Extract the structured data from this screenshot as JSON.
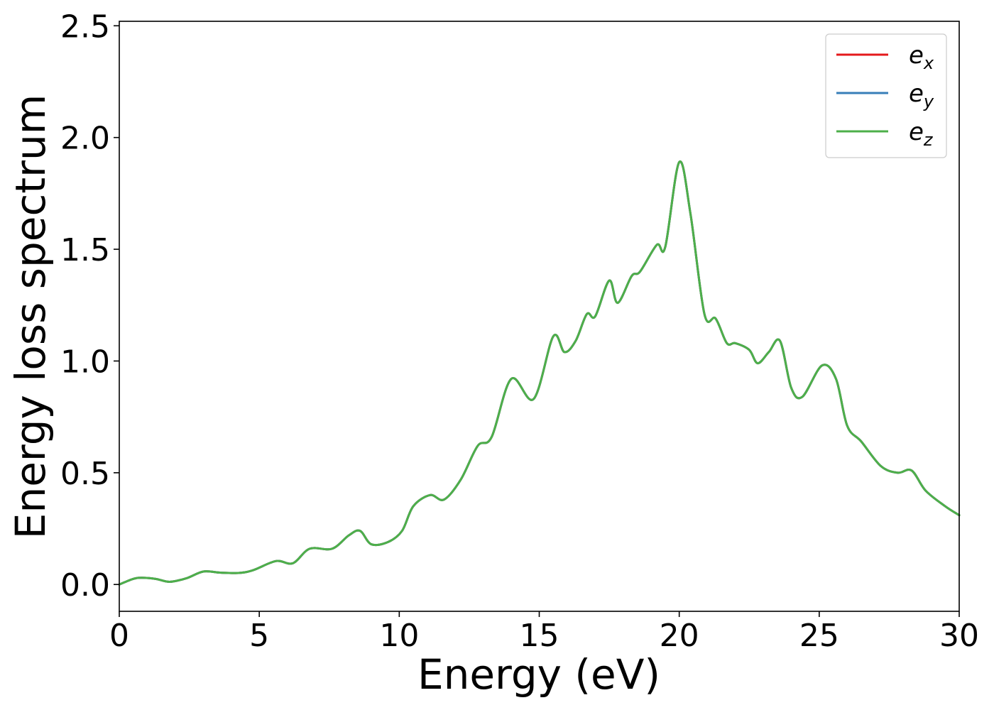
{
  "chart_data": {
    "type": "line",
    "title": "",
    "xlabel": "Energy (eV)",
    "ylabel": "Energy loss spectrum",
    "xlim": [
      0,
      30
    ],
    "ylim": [
      -0.12,
      2.52
    ],
    "xticks": [
      "0",
      "5",
      "10",
      "15",
      "20",
      "25",
      "30"
    ],
    "yticks": [
      "0.0",
      "0.5",
      "1.0",
      "1.5",
      "2.0",
      "2.5"
    ],
    "grid": false,
    "legend_position": "top-right",
    "legend": [
      {
        "base": "e",
        "sub": "x",
        "color": "#e41a1c"
      },
      {
        "base": "e",
        "sub": "y",
        "color": "#377eb8"
      },
      {
        "base": "e",
        "sub": "z",
        "color": "#4daf4a"
      }
    ],
    "x": [
      0,
      0.5,
      0.8,
      1.3,
      1.8,
      2.4,
      3.0,
      3.6,
      4.3,
      4.8,
      5.6,
      6.2,
      6.8,
      7.6,
      8.2,
      8.6,
      9.0,
      9.6,
      10.1,
      10.5,
      11.1,
      11.6,
      12.2,
      12.8,
      13.3,
      14.0,
      14.8,
      15.5,
      15.9,
      16.3,
      16.7,
      17.0,
      17.5,
      17.8,
      18.3,
      18.6,
      19.2,
      19.5,
      20.0,
      20.4,
      20.9,
      21.3,
      21.7,
      22.0,
      22.5,
      22.8,
      23.2,
      23.6,
      24.0,
      24.4,
      25.1,
      25.6,
      26.0,
      26.5,
      27.2,
      27.8,
      28.3,
      28.8,
      29.5,
      30.0
    ],
    "series": [
      {
        "name": "e_x",
        "color": "#e41a1c",
        "y": [
          0.0,
          0.025,
          0.03,
          0.025,
          0.012,
          0.028,
          0.058,
          0.053,
          0.052,
          0.065,
          0.105,
          0.095,
          0.16,
          0.16,
          0.22,
          0.24,
          0.18,
          0.19,
          0.24,
          0.35,
          0.4,
          0.38,
          0.47,
          0.62,
          0.66,
          0.92,
          0.83,
          1.11,
          1.04,
          1.09,
          1.21,
          1.2,
          1.36,
          1.26,
          1.38,
          1.4,
          1.52,
          1.51,
          1.89,
          1.66,
          1.21,
          1.19,
          1.08,
          1.08,
          1.05,
          0.99,
          1.04,
          1.09,
          0.88,
          0.84,
          0.98,
          0.92,
          0.71,
          0.64,
          0.53,
          0.5,
          0.51,
          0.42,
          0.35,
          0.31
        ]
      },
      {
        "name": "e_y",
        "color": "#377eb8",
        "y": [
          0.0,
          0.025,
          0.03,
          0.025,
          0.012,
          0.028,
          0.058,
          0.053,
          0.052,
          0.065,
          0.105,
          0.095,
          0.16,
          0.16,
          0.22,
          0.24,
          0.18,
          0.19,
          0.24,
          0.35,
          0.4,
          0.38,
          0.47,
          0.62,
          0.66,
          0.92,
          0.83,
          1.11,
          1.04,
          1.09,
          1.21,
          1.2,
          1.36,
          1.26,
          1.38,
          1.4,
          1.52,
          1.51,
          1.89,
          1.66,
          1.21,
          1.19,
          1.08,
          1.08,
          1.05,
          0.99,
          1.04,
          1.09,
          0.88,
          0.84,
          0.98,
          0.92,
          0.71,
          0.64,
          0.53,
          0.5,
          0.51,
          0.42,
          0.35,
          0.31
        ]
      },
      {
        "name": "e_z",
        "color": "#4daf4a",
        "y": [
          0.0,
          0.025,
          0.03,
          0.025,
          0.012,
          0.028,
          0.058,
          0.053,
          0.052,
          0.065,
          0.105,
          0.095,
          0.16,
          0.16,
          0.22,
          0.24,
          0.18,
          0.19,
          0.24,
          0.35,
          0.4,
          0.38,
          0.47,
          0.62,
          0.66,
          0.92,
          0.83,
          1.11,
          1.04,
          1.09,
          1.21,
          1.2,
          1.36,
          1.26,
          1.38,
          1.4,
          1.52,
          1.51,
          1.89,
          1.66,
          1.21,
          1.19,
          1.08,
          1.08,
          1.05,
          0.99,
          1.04,
          1.09,
          0.88,
          0.84,
          0.98,
          0.92,
          0.71,
          0.64,
          0.53,
          0.5,
          0.51,
          0.42,
          0.35,
          0.31
        ]
      }
    ]
  }
}
